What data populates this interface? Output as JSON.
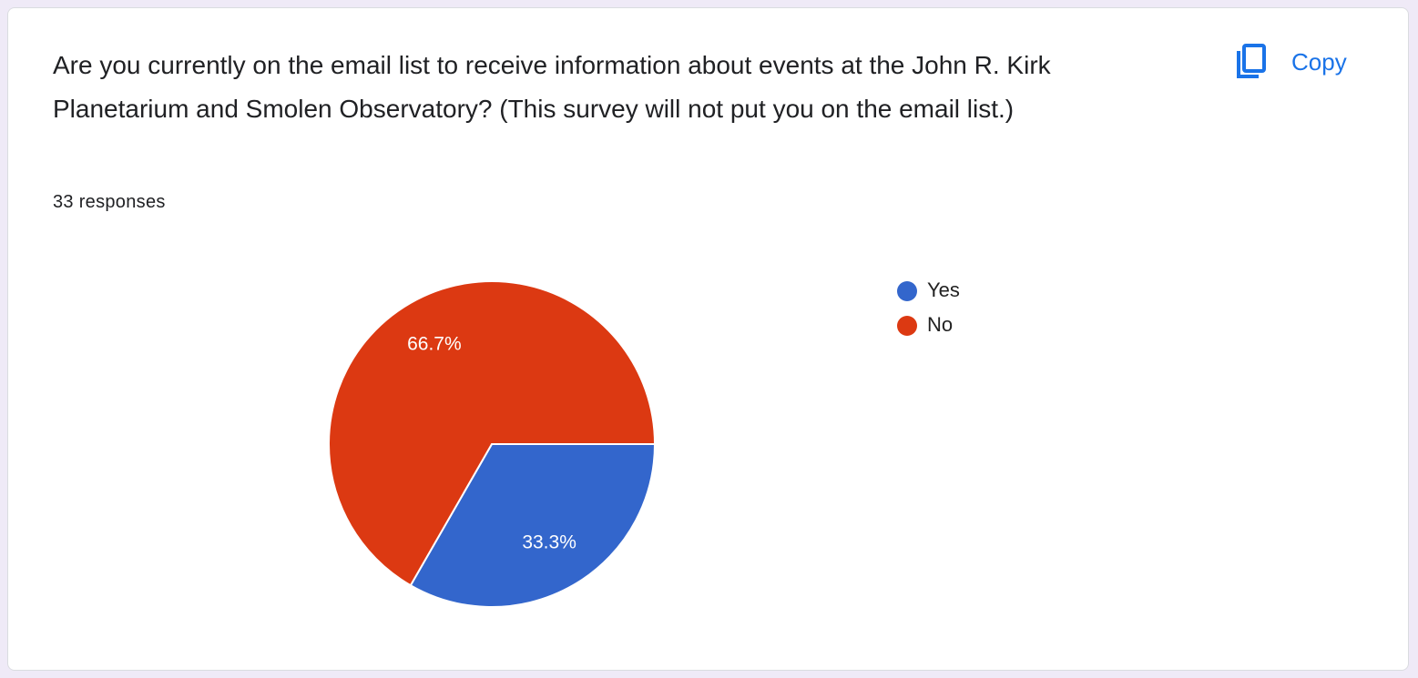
{
  "toolbar": {
    "copy": "Copy"
  },
  "chart_data": {
    "type": "pie",
    "title": "Are you currently on the email list to receive information about events at the John R. Kirk Planetarium and Smolen Observatory? (This survey will not put you on the email list.)",
    "subtitle": "33 responses",
    "categories": [
      "Yes",
      "No"
    ],
    "values": [
      33.3,
      66.7
    ],
    "value_labels": [
      "33.3%",
      "66.7%"
    ],
    "colors": [
      "#3366cc",
      "#dc3912"
    ],
    "legend": "right"
  }
}
